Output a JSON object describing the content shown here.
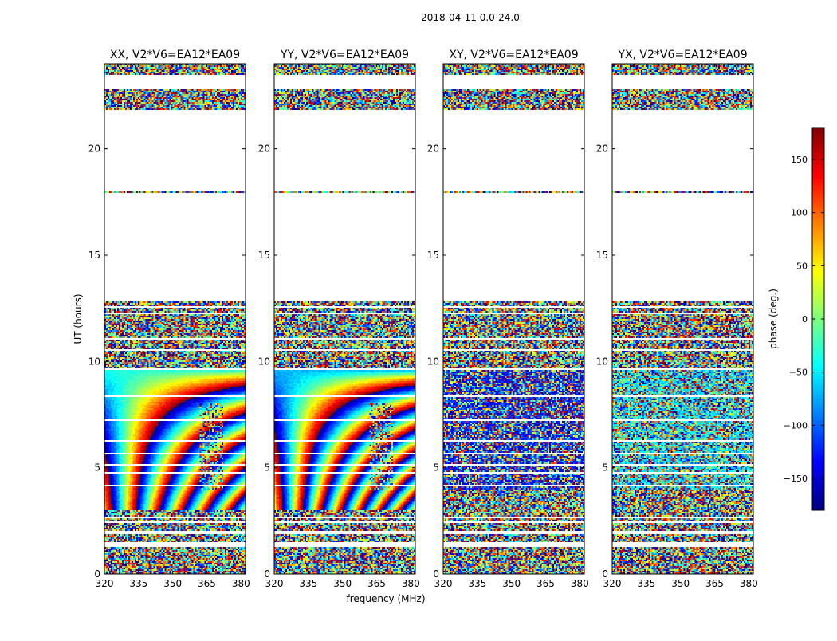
{
  "chart_data": {
    "type": "heatmap",
    "title": "2018-04-11 0.0-24.0",
    "xlabel": "frequency (MHz)",
    "ylabel": "UT (hours)",
    "xlim": [
      320,
      382
    ],
    "ylim": [
      0,
      24
    ],
    "xticks": [
      320,
      335,
      350,
      365,
      380
    ],
    "yticks": [
      0,
      5,
      10,
      15,
      20
    ],
    "colorbar": {
      "label": "phase (deg.)",
      "range": [
        -180,
        180
      ],
      "ticks": [
        150,
        100,
        50,
        0,
        -50,
        -100,
        -150
      ],
      "colormap": "jet"
    },
    "panels": [
      {
        "title": "XX, V2*V6=EA12*EA09",
        "pol": "XX",
        "coherent": true
      },
      {
        "title": "YY, V2*V6=EA12*EA09",
        "pol": "YY",
        "coherent": true
      },
      {
        "title": "XY, V2*V6=EA12*EA09",
        "pol": "XY",
        "coherent": false
      },
      {
        "title": "YX, V2*V6=EA12*EA09",
        "pol": "YX",
        "coherent": false
      }
    ],
    "data_bands_hours": [
      [
        0.0,
        1.3
      ],
      [
        1.5,
        1.9
      ],
      [
        2.0,
        2.4
      ],
      [
        2.45,
        2.6
      ],
      [
        2.7,
        3.2
      ],
      [
        3.25,
        3.5
      ],
      [
        3.55,
        4.1
      ],
      [
        4.2,
        4.7
      ],
      [
        4.8,
        5.1
      ],
      [
        5.15,
        5.6
      ],
      [
        5.7,
        6.2
      ],
      [
        6.3,
        7.2
      ],
      [
        7.3,
        8.3
      ],
      [
        8.4,
        9.6
      ],
      [
        9.7,
        10.5
      ],
      [
        10.6,
        11.0
      ],
      [
        11.1,
        12.2
      ],
      [
        12.3,
        12.5
      ],
      [
        12.6,
        12.8
      ],
      [
        17.9,
        18.0
      ],
      [
        21.8,
        22.8
      ],
      [
        23.5,
        24.0
      ]
    ]
  }
}
